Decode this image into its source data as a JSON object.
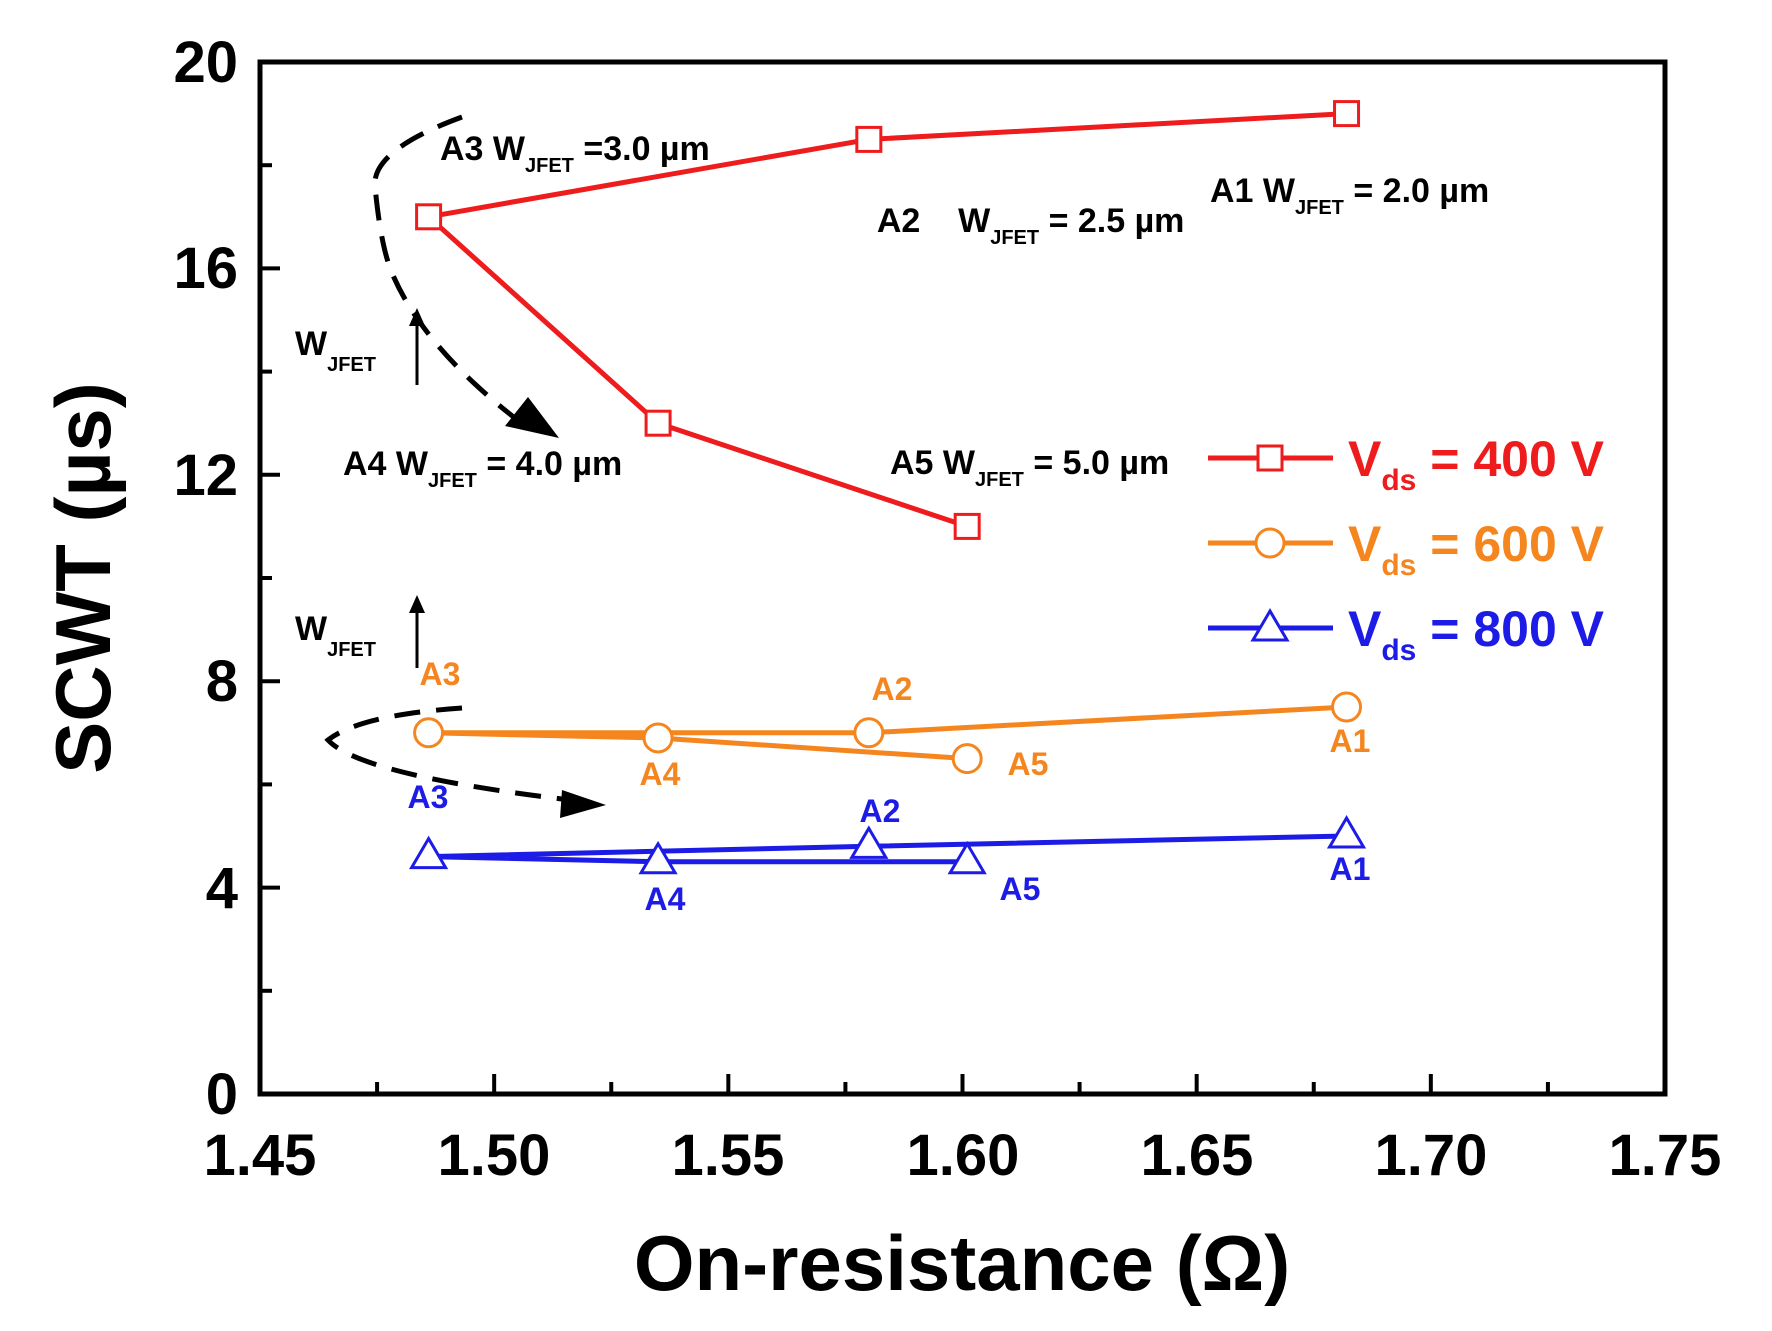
{
  "chart_data": {
    "type": "line",
    "xlabel": "On-resistance (Ω)",
    "ylabel": "SCWT (µs)",
    "xlim": [
      1.45,
      1.75
    ],
    "ylim": [
      0,
      20
    ],
    "xticks": [
      "1.45",
      "1.50",
      "1.55",
      "1.60",
      "1.65",
      "1.70",
      "1.75"
    ],
    "yticks": [
      "0",
      "4",
      "8",
      "12",
      "16",
      "20"
    ],
    "grid": false,
    "legend_position": "right",
    "series": [
      {
        "name": "Vds = 400 V",
        "legend_main": "V",
        "legend_sub": "ds",
        "legend_value": " = 400 V",
        "color": "#ee1c1c",
        "marker": "square",
        "points": [
          {
            "label": "A1",
            "x": 1.682,
            "y": 19.0
          },
          {
            "label": "A2",
            "x": 1.58,
            "y": 18.5
          },
          {
            "label": "A3",
            "x": 1.486,
            "y": 17.0
          },
          {
            "label": "A4",
            "x": 1.535,
            "y": 13.0
          },
          {
            "label": "A5",
            "x": 1.601,
            "y": 11.0
          }
        ]
      },
      {
        "name": "Vds = 600 V",
        "legend_main": "V",
        "legend_sub": "ds",
        "legend_value": " = 600 V",
        "color": "#f5861f",
        "marker": "circle",
        "points": [
          {
            "label": "A1",
            "x": 1.682,
            "y": 7.5
          },
          {
            "label": "A2",
            "x": 1.58,
            "y": 7.0
          },
          {
            "label": "A3",
            "x": 1.486,
            "y": 7.0
          },
          {
            "label": "A4",
            "x": 1.535,
            "y": 6.9
          },
          {
            "label": "A5",
            "x": 1.601,
            "y": 6.5
          }
        ]
      },
      {
        "name": "Vds = 800 V",
        "legend_main": "V",
        "legend_sub": "ds",
        "legend_value": " = 800 V",
        "color": "#1c1ce6",
        "marker": "triangle",
        "points": [
          {
            "label": "A1",
            "x": 1.682,
            "y": 5.0
          },
          {
            "label": "A2",
            "x": 1.58,
            "y": 4.8
          },
          {
            "label": "A3",
            "x": 1.486,
            "y": 4.6
          },
          {
            "label": "A4",
            "x": 1.535,
            "y": 4.5
          },
          {
            "label": "A5",
            "x": 1.601,
            "y": 4.5
          }
        ]
      }
    ],
    "annotations": [
      {
        "prefix": "A3 W",
        "sub": "JFET",
        "suffix": " =3.0 µm"
      },
      {
        "prefix": "A2    W",
        "sub": "JFET",
        "suffix": " = 2.5 µm"
      },
      {
        "prefix": "A1 W",
        "sub": "JFET",
        "suffix": " = 2.0 µm"
      },
      {
        "prefix": "A4 W",
        "sub": "JFET",
        "suffix": " = 4.0 µm"
      },
      {
        "prefix": "A5 W",
        "sub": "JFET",
        "suffix": " = 5.0 µm"
      },
      {
        "prefix": "W",
        "sub": "JFET",
        "suffix": ""
      },
      {
        "prefix": "W",
        "sub": "JFET",
        "suffix": ""
      }
    ]
  }
}
